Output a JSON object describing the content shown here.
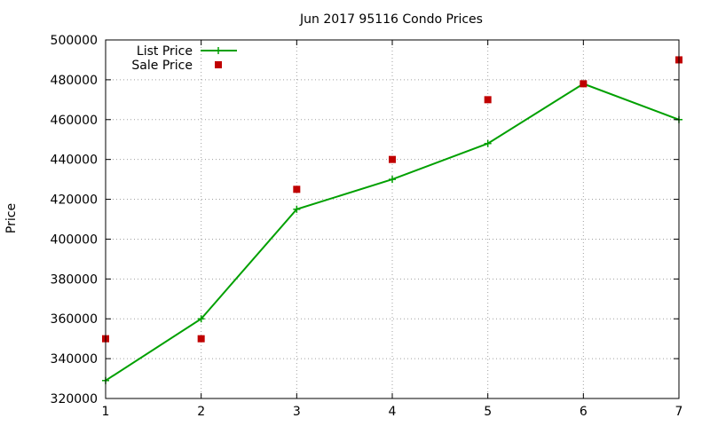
{
  "chart_data": {
    "type": "line",
    "title": "Jun 2017 95116 Condo Prices",
    "xlabel": "",
    "ylabel": "Price",
    "xlim": [
      1,
      7
    ],
    "ylim": [
      320000,
      500000
    ],
    "x_ticks": [
      "1",
      "2",
      "3",
      "4",
      "5",
      "6",
      "7"
    ],
    "y_ticks": [
      "320000",
      "340000",
      "360000",
      "380000",
      "400000",
      "420000",
      "440000",
      "460000",
      "480000",
      "500000"
    ],
    "grid": true,
    "legend_position": "top-left",
    "series": [
      {
        "name": "List Price",
        "style": "line-with-plus-markers",
        "color": "#00a000",
        "x": [
          1,
          2,
          3,
          4,
          5,
          6,
          7
        ],
        "values": [
          329000,
          360000,
          415000,
          430000,
          448000,
          478000,
          460000
        ]
      },
      {
        "name": "Sale Price",
        "style": "square-markers",
        "color": "#c00000",
        "x": [
          1,
          2,
          3,
          4,
          5,
          6,
          7
        ],
        "values": [
          350000,
          350000,
          425000,
          440000,
          470000,
          478000,
          490000
        ]
      }
    ]
  }
}
